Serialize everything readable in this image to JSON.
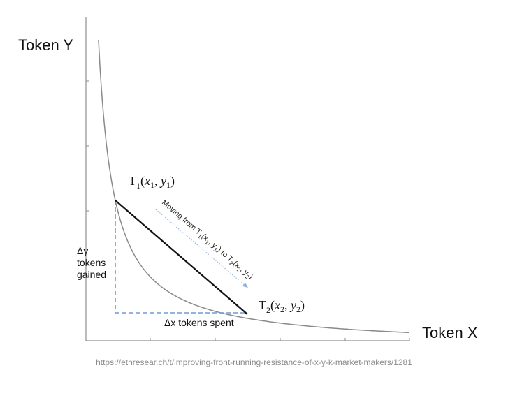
{
  "axes": {
    "y_title": "Token Y",
    "x_title": "Token X"
  },
  "points": {
    "t1": {
      "base": "T",
      "index": "1",
      "open": "(",
      "x": "x",
      "x_sub": "1",
      "comma": ", ",
      "y": "y",
      "y_sub": "1",
      "close": ")"
    },
    "t2": {
      "base": "T",
      "index": "2",
      "open": "(",
      "x": "x",
      "x_sub": "2",
      "comma": ", ",
      "y": "y",
      "y_sub": "2",
      "close": ")"
    }
  },
  "move_label": {
    "prefix": "Moving from ",
    "t1": "T",
    "t1_index": "1",
    "t1_open": "(",
    "t1_x": "x",
    "t1_x_sub": "1",
    "t1_sep": ", ",
    "t1_y": "y",
    "t1_y_sub": "1",
    "t1_close": ")",
    "mid": " to ",
    "t2": "T",
    "t2_index": "2",
    "t2_open": "(",
    "t2_x": "x",
    "t2_x_sub": "2",
    "t2_sep": ", ",
    "t2_y": "y",
    "t2_y_sub": "2",
    "t2_close": ")"
  },
  "delta_y": {
    "line1": "Δy",
    "line2": "tokens",
    "line3": "gained"
  },
  "delta_x": "Δx tokens spent",
  "source_url": "https://ethresear.ch/t/improving-front-running-resistance-of-x-y-k-market-makers/1281",
  "colors": {
    "curve": "#8a8a8a",
    "chord": "#111111",
    "dashed_guides": "#6e9bd2"
  }
}
